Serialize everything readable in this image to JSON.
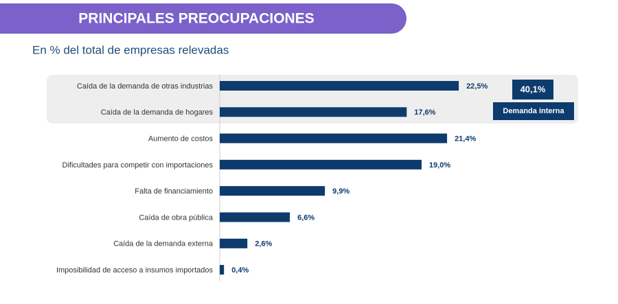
{
  "chart_data": {
    "type": "bar",
    "orientation": "horizontal",
    "title": "PRINCIPALES PREOCUPACIONES",
    "subtitle": "En % del total de empresas relevadas",
    "categories": [
      "Caída de la demanda de otras industrias",
      "Caída de la demanda de hogares",
      "Aumento de costos",
      "Dificultades para competir con importaciones",
      "Falta de financiamiento",
      "Caída de obra pública",
      "Caída de la demanda externa",
      "Imposibilidad de acceso a insumos importados"
    ],
    "values": [
      22.5,
      17.6,
      21.4,
      19.0,
      9.9,
      6.6,
      2.6,
      0.4
    ],
    "value_labels": [
      "22,5%",
      "17,6%",
      "21,4%",
      "19,0%",
      "9,9%",
      "6,6%",
      "2,6%",
      "0,4%"
    ],
    "color": "#0d3b6e",
    "annotation": {
      "value": 40.1,
      "label": "40,1%",
      "text": "Demanda interna"
    }
  }
}
